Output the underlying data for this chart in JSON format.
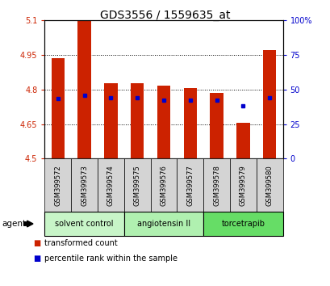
{
  "title": "GDS3556 / 1559635_at",
  "samples": [
    "GSM399572",
    "GSM399573",
    "GSM399574",
    "GSM399575",
    "GSM399576",
    "GSM399577",
    "GSM399578",
    "GSM399579",
    "GSM399580"
  ],
  "bar_values": [
    4.935,
    5.095,
    4.825,
    4.825,
    4.815,
    4.805,
    4.785,
    4.655,
    4.97
  ],
  "percentile_values": [
    4.76,
    4.775,
    4.765,
    4.765,
    4.755,
    4.755,
    4.755,
    4.73,
    4.765
  ],
  "bar_color": "#cc2200",
  "percentile_color": "#0000cc",
  "ylim_left": [
    4.5,
    5.1
  ],
  "ylim_right": [
    0,
    100
  ],
  "yticks_left": [
    4.5,
    4.65,
    4.8,
    4.95,
    5.1
  ],
  "yticks_right": [
    0,
    25,
    50,
    75,
    100
  ],
  "ytick_labels_left": [
    "4.5",
    "4.65",
    "4.8",
    "4.95",
    "5.1"
  ],
  "ytick_labels_right": [
    "0",
    "25",
    "50",
    "75",
    "100%"
  ],
  "groups": [
    {
      "label": "solvent control",
      "start": 0,
      "end": 2,
      "color": "#c8f5c8"
    },
    {
      "label": "angiotensin II",
      "start": 3,
      "end": 5,
      "color": "#b0f0b0"
    },
    {
      "label": "torcetrapib",
      "start": 6,
      "end": 8,
      "color": "#66dd66"
    }
  ],
  "agent_label": "agent",
  "legend_red": "transformed count",
  "legend_blue": "percentile rank within the sample",
  "bar_width": 0.5,
  "base_value": 4.5,
  "background_color": "#ffffff",
  "plot_bg": "#ffffff",
  "tick_label_color_left": "#cc2200",
  "tick_label_color_right": "#0000cc",
  "grid_lines": [
    4.65,
    4.8,
    4.95
  ],
  "sample_box_color": "#d4d4d4"
}
